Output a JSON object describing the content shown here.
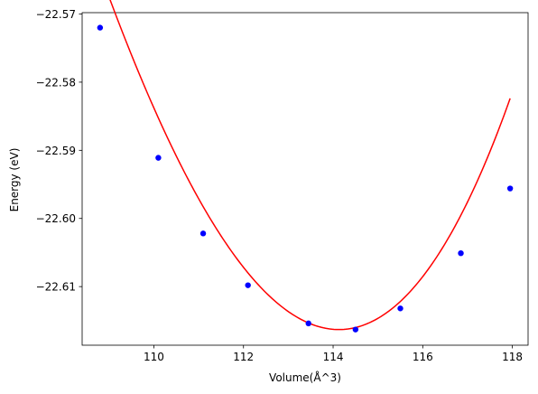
{
  "chart_data": {
    "type": "scatter",
    "xlabel": "Volume(Å^3)",
    "ylabel": "Energy (eV)",
    "xlim": [
      108.4,
      118.35
    ],
    "ylim": [
      -22.6186,
      -22.5698
    ],
    "xticks": [
      110,
      112,
      114,
      116,
      118
    ],
    "yticks": [
      -22.57,
      -22.58,
      -22.59,
      -22.6,
      -22.61
    ],
    "xtick_labels": [
      "110",
      "112",
      "114",
      "116",
      "118"
    ],
    "ytick_labels": [
      "−22.57",
      "−22.58",
      "−22.59",
      "−22.60",
      "−22.61"
    ],
    "grid": false,
    "series": [
      {
        "kind": "points",
        "color": "#0000ff",
        "x": [
          108.8,
          110.1,
          111.1,
          112.1,
          113.45,
          114.5,
          115.5,
          116.85,
          117.95
        ],
        "y": [
          -22.572,
          -22.5911,
          -22.6022,
          -22.6098,
          -22.6154,
          -22.6163,
          -22.6132,
          -22.6051,
          -22.5956
        ]
      },
      {
        "kind": "fit",
        "color": "#ff0000",
        "x_range": [
          108.8,
          117.95
        ],
        "minimum": {
          "x": 114.13,
          "y": -22.6163
        },
        "coefficients": [
          5.25e-05,
          0.0021235,
          -22.6163
        ]
      }
    ]
  }
}
